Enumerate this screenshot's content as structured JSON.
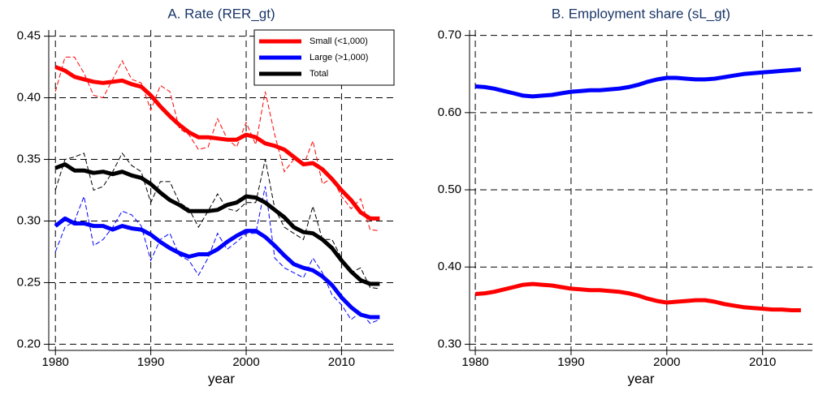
{
  "chart_data": [
    {
      "type": "line",
      "title": "A. Rate (RER_gt)",
      "x_label": "year",
      "x": [
        1980,
        1981,
        1982,
        1983,
        1984,
        1985,
        1986,
        1987,
        1988,
        1989,
        1990,
        1991,
        1992,
        1993,
        1994,
        1995,
        1996,
        1997,
        1998,
        1999,
        2000,
        2001,
        2002,
        2003,
        2004,
        2005,
        2006,
        2007,
        2008,
        2009,
        2010,
        2011,
        2012,
        2013,
        2014
      ],
      "xlim": [
        1979.3,
        2015.5
      ],
      "xticks": [
        1980,
        1990,
        2000,
        2010
      ],
      "ylim": [
        0.195,
        0.455
      ],
      "yticks": [
        {
          "value": 0.2,
          "label": "0.20"
        },
        {
          "value": 0.25,
          "label": "0.25"
        },
        {
          "value": 0.3,
          "label": "0.30"
        },
        {
          "value": 0.35,
          "label": "0.35"
        },
        {
          "value": 0.4,
          "label": "0.40"
        },
        {
          "value": 0.45,
          "label": "0.45"
        }
      ],
      "grid": true,
      "legend": "upper right",
      "series": [
        {
          "name": "Small (<1,000)",
          "color": "#ff0000",
          "values": [
            0.425,
            0.422,
            0.417,
            0.415,
            0.413,
            0.412,
            0.413,
            0.414,
            0.411,
            0.409,
            0.402,
            0.393,
            0.385,
            0.378,
            0.372,
            0.368,
            0.368,
            0.367,
            0.366,
            0.366,
            0.37,
            0.368,
            0.363,
            0.361,
            0.358,
            0.352,
            0.346,
            0.347,
            0.342,
            0.334,
            0.325,
            0.317,
            0.307,
            0.302,
            0.302
          ],
          "raw_values": [
            0.405,
            0.433,
            0.433,
            0.42,
            0.402,
            0.4,
            0.415,
            0.43,
            0.415,
            0.412,
            0.39,
            0.41,
            0.405,
            0.375,
            0.37,
            0.358,
            0.36,
            0.383,
            0.367,
            0.36,
            0.38,
            0.362,
            0.405,
            0.37,
            0.34,
            0.35,
            0.345,
            0.365,
            0.33,
            0.335,
            0.32,
            0.31,
            0.318,
            0.293,
            0.292
          ]
        },
        {
          "name": "Large (>1,000)",
          "color": "#0000ff",
          "values": [
            0.296,
            0.302,
            0.298,
            0.298,
            0.296,
            0.296,
            0.293,
            0.296,
            0.294,
            0.293,
            0.289,
            0.283,
            0.278,
            0.274,
            0.271,
            0.273,
            0.273,
            0.277,
            0.283,
            0.288,
            0.292,
            0.292,
            0.287,
            0.28,
            0.272,
            0.265,
            0.262,
            0.26,
            0.255,
            0.248,
            0.238,
            0.23,
            0.224,
            0.222,
            0.222
          ],
          "raw_values": [
            0.275,
            0.295,
            0.3,
            0.32,
            0.28,
            0.285,
            0.295,
            0.308,
            0.305,
            0.296,
            0.268,
            0.285,
            0.29,
            0.272,
            0.268,
            0.256,
            0.27,
            0.29,
            0.277,
            0.283,
            0.29,
            0.29,
            0.328,
            0.27,
            0.262,
            0.258,
            0.254,
            0.27,
            0.258,
            0.24,
            0.232,
            0.22,
            0.226,
            0.217,
            0.22
          ]
        },
        {
          "name": "Total",
          "color": "#000000",
          "values": [
            0.343,
            0.346,
            0.341,
            0.341,
            0.339,
            0.34,
            0.338,
            0.34,
            0.337,
            0.335,
            0.33,
            0.323,
            0.317,
            0.313,
            0.308,
            0.308,
            0.308,
            0.309,
            0.313,
            0.315,
            0.32,
            0.319,
            0.315,
            0.309,
            0.303,
            0.295,
            0.291,
            0.29,
            0.285,
            0.278,
            0.268,
            0.259,
            0.252,
            0.249,
            0.249
          ],
          "raw_values": [
            0.325,
            0.35,
            0.352,
            0.355,
            0.325,
            0.328,
            0.34,
            0.355,
            0.345,
            0.34,
            0.315,
            0.332,
            0.332,
            0.315,
            0.31,
            0.295,
            0.308,
            0.322,
            0.31,
            0.308,
            0.315,
            0.315,
            0.35,
            0.31,
            0.295,
            0.29,
            0.285,
            0.312,
            0.285,
            0.285,
            0.27,
            0.258,
            0.262,
            0.246,
            0.245
          ]
        }
      ]
    },
    {
      "type": "line",
      "title": "B. Employment share (sL_gt)",
      "x_label": "year",
      "x": [
        1980,
        1981,
        1982,
        1983,
        1984,
        1985,
        1986,
        1987,
        1988,
        1989,
        1990,
        1991,
        1992,
        1993,
        1994,
        1995,
        1996,
        1997,
        1998,
        1999,
        2000,
        2001,
        2002,
        2003,
        2004,
        2005,
        2006,
        2007,
        2008,
        2009,
        2010,
        2011,
        2012,
        2013,
        2014
      ],
      "xlim": [
        1979.4,
        2015.2
      ],
      "xticks": [
        1980,
        1990,
        2000,
        2010
      ],
      "ylim": [
        0.292,
        0.707
      ],
      "yticks": [
        {
          "value": 0.3,
          "label": "0.30"
        },
        {
          "value": 0.4,
          "label": "0.40"
        },
        {
          "value": 0.5,
          "label": "0.50"
        },
        {
          "value": 0.6,
          "label": "0.60"
        },
        {
          "value": 0.7,
          "label": "0.70"
        }
      ],
      "grid": true,
      "series": [
        {
          "color": "#0000ff",
          "values": [
            0.634,
            0.633,
            0.631,
            0.628,
            0.625,
            0.622,
            0.621,
            0.622,
            0.623,
            0.625,
            0.627,
            0.628,
            0.629,
            0.629,
            0.63,
            0.631,
            0.633,
            0.636,
            0.64,
            0.643,
            0.645,
            0.645,
            0.644,
            0.643,
            0.643,
            0.644,
            0.646,
            0.648,
            0.65,
            0.651,
            0.652,
            0.653,
            0.654,
            0.655,
            0.656
          ]
        },
        {
          "color": "#ff0000",
          "values": [
            0.365,
            0.366,
            0.368,
            0.371,
            0.374,
            0.377,
            0.378,
            0.377,
            0.376,
            0.374,
            0.372,
            0.371,
            0.37,
            0.37,
            0.369,
            0.368,
            0.366,
            0.363,
            0.359,
            0.356,
            0.354,
            0.355,
            0.356,
            0.357,
            0.357,
            0.355,
            0.352,
            0.35,
            0.348,
            0.347,
            0.346,
            0.345,
            0.345,
            0.344,
            0.344
          ]
        }
      ]
    }
  ]
}
